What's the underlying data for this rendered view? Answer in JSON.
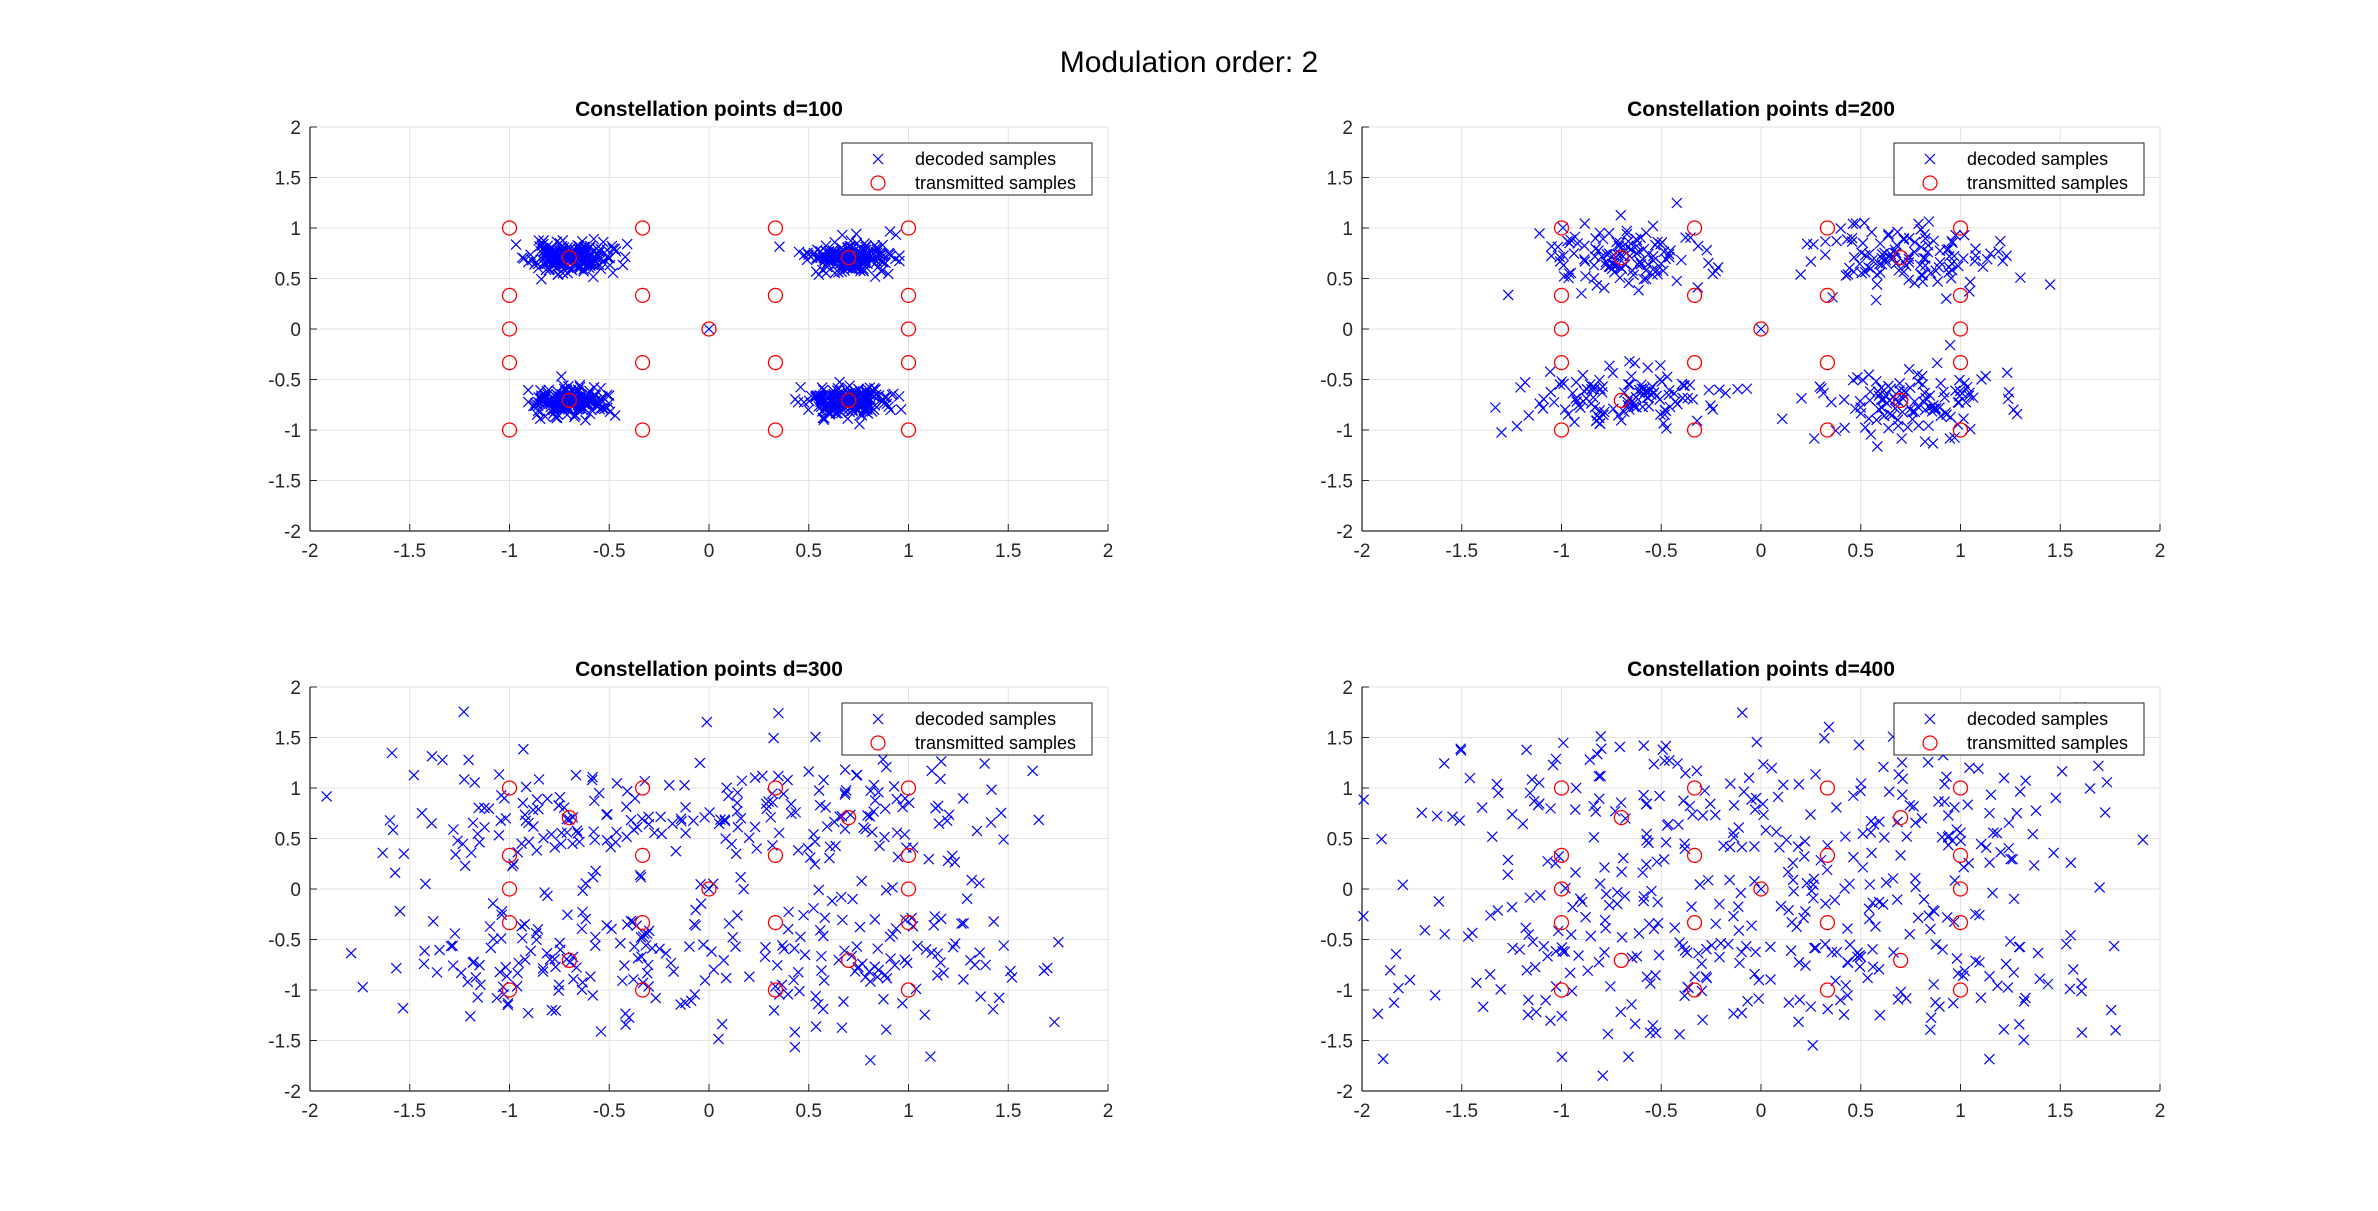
{
  "figure": {
    "title": "Modulation order: 2",
    "colors": {
      "decoded": "#0000ff",
      "transmitted": "#ff0000",
      "axis": "#262626",
      "grid": "#e3e3e3"
    }
  },
  "chart_data": [
    {
      "type": "scatter",
      "title": "Constellation points d=100",
      "xlim": [
        -2,
        2
      ],
      "ylim": [
        -2,
        2
      ],
      "xticks": [
        -2,
        -1.5,
        -1,
        -0.5,
        0,
        0.5,
        1,
        1.5,
        2
      ],
      "yticks": [
        -2,
        -1.5,
        -1,
        -0.5,
        0,
        0.5,
        1,
        1.5,
        2
      ],
      "grid": true,
      "legend_position": "top-right",
      "series": [
        {
          "name": "decoded samples",
          "marker": "x",
          "noise": 0.1,
          "count": 200,
          "seed": 11,
          "centers": [
            [
              -0.7,
              0.707
            ],
            [
              0.7,
              0.707
            ],
            [
              -0.7,
              -0.707
            ],
            [
              0.7,
              -0.707
            ]
          ],
          "extra": [
            [
              0,
              0
            ]
          ]
        },
        {
          "name": "transmitted samples",
          "marker": "o",
          "points": [
            [
              -1,
              1
            ],
            [
              -0.333,
              1
            ],
            [
              0.333,
              1
            ],
            [
              1,
              1
            ],
            [
              -1,
              0.333
            ],
            [
              -0.333,
              0.333
            ],
            [
              0.333,
              0.333
            ],
            [
              1,
              0.333
            ],
            [
              -1,
              0
            ],
            [
              1,
              0
            ],
            [
              0,
              0
            ],
            [
              -1,
              -0.333
            ],
            [
              -0.333,
              -0.333
            ],
            [
              0.333,
              -0.333
            ],
            [
              1,
              -0.333
            ],
            [
              -1,
              -1
            ],
            [
              -0.333,
              -1
            ],
            [
              0.333,
              -1
            ],
            [
              1,
              -1
            ],
            [
              -0.7,
              0.707
            ],
            [
              0.7,
              0.707
            ],
            [
              -0.7,
              -0.707
            ],
            [
              0.7,
              -0.707
            ]
          ]
        }
      ]
    },
    {
      "type": "scatter",
      "title": "Constellation points d=200",
      "xlim": [
        -2,
        2
      ],
      "ylim": [
        -2,
        2
      ],
      "xticks": [
        -2,
        -1.5,
        -1,
        -0.5,
        0,
        0.5,
        1,
        1.5,
        2
      ],
      "yticks": [
        -2,
        -1.5,
        -1,
        -0.5,
        0,
        0.5,
        1,
        1.5,
        2
      ],
      "grid": true,
      "legend_position": "top-right",
      "series": [
        {
          "name": "decoded samples",
          "marker": "x",
          "noise": 0.22,
          "count": 120,
          "seed": 23,
          "centers": [
            [
              -0.7,
              0.707
            ],
            [
              0.7,
              0.707
            ],
            [
              -0.7,
              -0.707
            ],
            [
              0.7,
              -0.707
            ]
          ],
          "extra": [
            [
              0,
              0
            ]
          ]
        },
        {
          "name": "transmitted samples",
          "marker": "o",
          "points": [
            [
              -1,
              1
            ],
            [
              -0.333,
              1
            ],
            [
              0.333,
              1
            ],
            [
              1,
              1
            ],
            [
              -1,
              0.333
            ],
            [
              -0.333,
              0.333
            ],
            [
              0.333,
              0.333
            ],
            [
              1,
              0.333
            ],
            [
              -1,
              0
            ],
            [
              1,
              0
            ],
            [
              0,
              0
            ],
            [
              -1,
              -0.333
            ],
            [
              -0.333,
              -0.333
            ],
            [
              0.333,
              -0.333
            ],
            [
              1,
              -0.333
            ],
            [
              -1,
              -1
            ],
            [
              -0.333,
              -1
            ],
            [
              0.333,
              -1
            ],
            [
              1,
              -1
            ],
            [
              -0.7,
              0.707
            ],
            [
              0.7,
              0.707
            ],
            [
              -0.7,
              -0.707
            ],
            [
              0.7,
              -0.707
            ]
          ]
        }
      ]
    },
    {
      "type": "scatter",
      "title": "Constellation points d=300",
      "xlim": [
        -2,
        2
      ],
      "ylim": [
        -2,
        2
      ],
      "xticks": [
        -2,
        -1.5,
        -1,
        -0.5,
        0,
        0.5,
        1,
        1.5,
        2
      ],
      "yticks": [
        -2,
        -1.5,
        -1,
        -0.5,
        0,
        0.5,
        1,
        1.5,
        2
      ],
      "grid": true,
      "legend_position": "top-right",
      "series": [
        {
          "name": "decoded samples",
          "marker": "x",
          "noise": 0.45,
          "count": 120,
          "seed": 37,
          "centers": [
            [
              -0.7,
              0.707
            ],
            [
              0.7,
              0.707
            ],
            [
              -0.7,
              -0.707
            ],
            [
              0.7,
              -0.707
            ]
          ],
          "extra": [
            [
              0,
              0
            ]
          ]
        },
        {
          "name": "transmitted samples",
          "marker": "o",
          "points": [
            [
              -1,
              1
            ],
            [
              -0.333,
              1
            ],
            [
              0.333,
              1
            ],
            [
              1,
              1
            ],
            [
              -1,
              0.333
            ],
            [
              -0.333,
              0.333
            ],
            [
              0.333,
              0.333
            ],
            [
              1,
              0.333
            ],
            [
              -1,
              0
            ],
            [
              1,
              0
            ],
            [
              0,
              0
            ],
            [
              -1,
              -0.333
            ],
            [
              -0.333,
              -0.333
            ],
            [
              0.333,
              -0.333
            ],
            [
              1,
              -0.333
            ],
            [
              -1,
              -1
            ],
            [
              -0.333,
              -1
            ],
            [
              0.333,
              -1
            ],
            [
              1,
              -1
            ],
            [
              -0.7,
              0.707
            ],
            [
              0.7,
              0.707
            ],
            [
              -0.7,
              -0.707
            ],
            [
              0.7,
              -0.707
            ]
          ]
        }
      ]
    },
    {
      "type": "scatter",
      "title": "Constellation points d=400",
      "xlim": [
        -2,
        2
      ],
      "ylim": [
        -2,
        2
      ],
      "xticks": [
        -2,
        -1.5,
        -1,
        -0.5,
        0,
        0.5,
        1,
        1.5,
        2
      ],
      "yticks": [
        -2,
        -1.5,
        -1,
        -0.5,
        0,
        0.5,
        1,
        1.5,
        2
      ],
      "grid": true,
      "legend_position": "top-right",
      "series": [
        {
          "name": "decoded samples",
          "marker": "x",
          "noise": 0.6,
          "count": 120,
          "seed": 53,
          "centers": [
            [
              -0.7,
              0.707
            ],
            [
              0.7,
              0.707
            ],
            [
              -0.7,
              -0.707
            ],
            [
              0.7,
              -0.707
            ]
          ],
          "extra": [
            [
              0,
              0
            ]
          ]
        },
        {
          "name": "transmitted samples",
          "marker": "o",
          "points": [
            [
              -1,
              1
            ],
            [
              -0.333,
              1
            ],
            [
              0.333,
              1
            ],
            [
              1,
              1
            ],
            [
              -1,
              0.333
            ],
            [
              -0.333,
              0.333
            ],
            [
              0.333,
              0.333
            ],
            [
              1,
              0.333
            ],
            [
              -1,
              0
            ],
            [
              1,
              0
            ],
            [
              0,
              0
            ],
            [
              -1,
              -0.333
            ],
            [
              -0.333,
              -0.333
            ],
            [
              0.333,
              -0.333
            ],
            [
              1,
              -0.333
            ],
            [
              -1,
              -1
            ],
            [
              -0.333,
              -1
            ],
            [
              0.333,
              -1
            ],
            [
              1,
              -1
            ],
            [
              -0.7,
              0.707
            ],
            [
              0.7,
              0.707
            ],
            [
              -0.7,
              -0.707
            ],
            [
              0.7,
              -0.707
            ]
          ]
        }
      ]
    }
  ]
}
